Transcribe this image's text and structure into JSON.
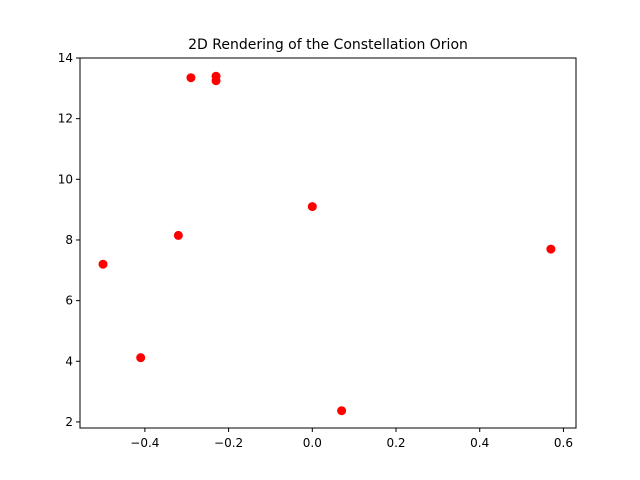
{
  "chart_data": {
    "type": "scatter",
    "title": "2D Rendering of the Constellation Orion",
    "xlabel": "",
    "ylabel": "",
    "xlim": [
      -0.555,
      0.63
    ],
    "ylim": [
      1.8,
      14.0
    ],
    "xticks": [
      -0.4,
      -0.2,
      0.0,
      0.2,
      0.4,
      0.6
    ],
    "xtick_labels": [
      "−0.4",
      "−0.2",
      "0.0",
      "0.2",
      "0.4",
      "0.6"
    ],
    "yticks": [
      2,
      4,
      6,
      8,
      10,
      12,
      14
    ],
    "ytick_labels": [
      "2",
      "4",
      "6",
      "8",
      "10",
      "12",
      "14"
    ],
    "grid": false,
    "legend": "none",
    "series": [
      {
        "color": "#ff0000",
        "marker": "circle",
        "x": [
          -0.29,
          -0.23,
          -0.23,
          0.0,
          -0.32,
          -0.5,
          0.57,
          -0.41,
          0.07
        ],
        "y": [
          13.35,
          13.4,
          13.25,
          9.1,
          8.15,
          7.2,
          7.7,
          4.12,
          2.37
        ]
      }
    ]
  }
}
